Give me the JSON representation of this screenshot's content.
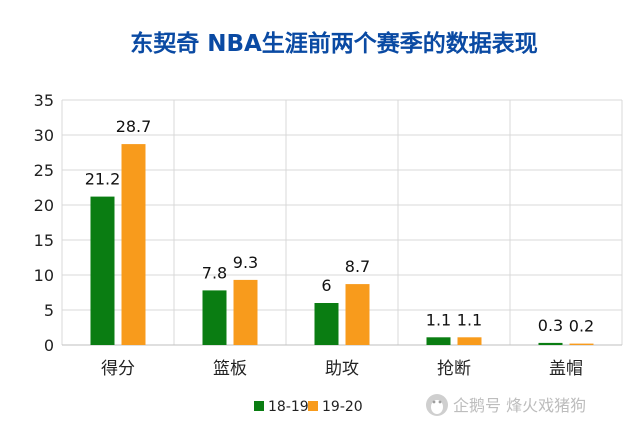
{
  "chart_data": {
    "type": "bar",
    "title": "东契奇 NBA生涯前两个赛季的数据表现",
    "categories": [
      "得分",
      "篮板",
      "助攻",
      "抢断",
      "盖帽"
    ],
    "series": [
      {
        "name": "18-19",
        "color": "#0a7d12",
        "values": [
          21.2,
          7.8,
          6,
          1.1,
          0.3
        ],
        "labels": [
          "21.2",
          "7.8",
          "6",
          "1.1",
          "0.3"
        ]
      },
      {
        "name": "19-20",
        "color": "#f89b1c",
        "values": [
          28.7,
          9.3,
          8.7,
          1.1,
          0.2
        ],
        "labels": [
          "28.7",
          "9.3",
          "8.7",
          "1.1",
          "0.2"
        ]
      }
    ],
    "ylim": [
      0,
      35
    ],
    "yticks": [
      "0",
      "5",
      "10",
      "15",
      "20",
      "25",
      "30",
      "35"
    ],
    "grid": true,
    "legend_position": "bottom-center"
  },
  "watermark": {
    "text": "企鹅号 烽火戏猪狗",
    "icon": "penguin-logo-icon"
  }
}
